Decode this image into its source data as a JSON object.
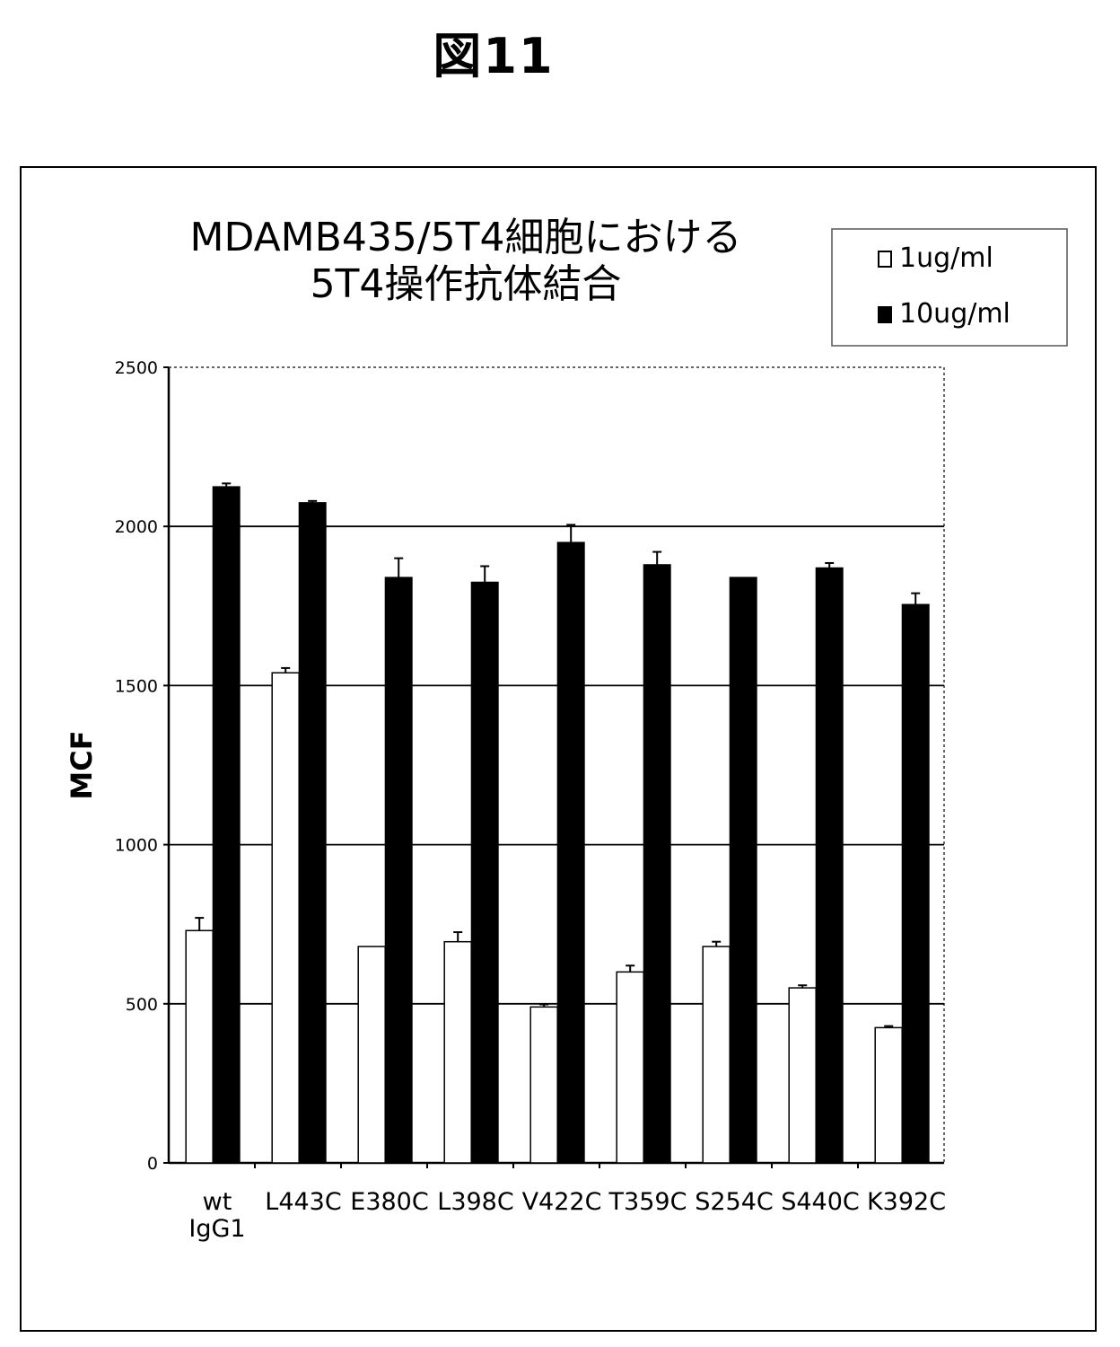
{
  "figure_label": "図11",
  "chart_data": {
    "type": "bar",
    "title_lines": [
      "MDAMB435/5T4細胞における",
      "5T4操作抗体結合"
    ],
    "ylabel": "MCF",
    "xlabel": "",
    "ylim": [
      0,
      2500
    ],
    "yticks": [
      0,
      500,
      1000,
      1500,
      2000,
      2500
    ],
    "grid": true,
    "legend_position": "top-right",
    "categories": [
      [
        "wt",
        "IgG1"
      ],
      [
        "L443C"
      ],
      [
        "E380C"
      ],
      [
        "L398C"
      ],
      [
        "V422C"
      ],
      [
        "T359C"
      ],
      [
        "S254C"
      ],
      [
        "S440C"
      ],
      [
        "K392C"
      ]
    ],
    "series": [
      {
        "name": "1ug/ml",
        "color": "#ffffff",
        "values": [
          730,
          1540,
          680,
          695,
          490,
          600,
          680,
          550,
          425
        ],
        "errors": [
          40,
          15,
          0,
          30,
          8,
          20,
          15,
          8,
          5
        ]
      },
      {
        "name": "10ug/ml",
        "color": "#000000",
        "values": [
          2125,
          2075,
          1840,
          1825,
          1950,
          1880,
          1840,
          1870,
          1755
        ],
        "errors": [
          10,
          5,
          60,
          50,
          55,
          40,
          0,
          15,
          35
        ]
      }
    ]
  }
}
